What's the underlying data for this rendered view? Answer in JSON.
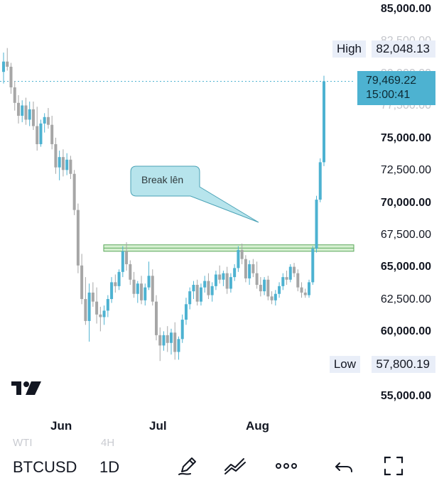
{
  "chart_data": {
    "type": "candlestick",
    "symbol": "BTCUSD",
    "timeframe": "1D",
    "y_ticks": [
      "85,000.00",
      "82,500.00",
      "80,000.00",
      "77,500.00",
      "75,000.00",
      "72,500.00",
      "70,000.00",
      "67,500.00",
      "65,000.00",
      "62,500.00",
      "60,000.00",
      "55,000.00"
    ],
    "x_ticks": [
      "Jun",
      "Jul",
      "Aug"
    ],
    "high_label": "High",
    "high_value": "82,048.13",
    "low_label": "Low",
    "low_value": "57,800.19",
    "last_price": "79,469.22",
    "countdown": "15:00:41",
    "annotation": "Break lên",
    "resistance_zone": [
      66300,
      66800
    ],
    "ylim": [
      54000,
      85500
    ],
    "candles": [
      [
        80200,
        81700,
        79300,
        81000
      ],
      [
        81000,
        82048,
        80300,
        80600
      ],
      [
        80600,
        80900,
        78500,
        79000
      ],
      [
        79000,
        79500,
        77200,
        77800
      ],
      [
        77800,
        78400,
        76200,
        76800
      ],
      [
        76800,
        78000,
        76300,
        77600
      ],
      [
        77600,
        78200,
        76100,
        76500
      ],
      [
        76500,
        77900,
        76000,
        77300
      ],
      [
        77300,
        77900,
        75700,
        76000
      ],
      [
        76000,
        77500,
        74100,
        74600
      ],
      [
        74600,
        76500,
        74400,
        76200
      ],
      [
        76200,
        77000,
        75500,
        76700
      ],
      [
        76700,
        77400,
        75800,
        76100
      ],
      [
        76100,
        76800,
        74200,
        74600
      ],
      [
        74600,
        75100,
        72300,
        72800
      ],
      [
        72800,
        74100,
        71800,
        73600
      ],
      [
        73600,
        74200,
        72100,
        72600
      ],
      [
        72600,
        73900,
        72200,
        73400
      ],
      [
        73400,
        73700,
        71900,
        72300
      ],
      [
        72300,
        72600,
        69100,
        69500
      ],
      [
        69500,
        70000,
        64600,
        65200
      ],
      [
        65200,
        66100,
        62200,
        62600
      ],
      [
        62600,
        64300,
        60600,
        60900
      ],
      [
        60900,
        63800,
        59300,
        63100
      ],
      [
        63100,
        63900,
        62000,
        62400
      ],
      [
        62400,
        63500,
        60700,
        61400
      ],
      [
        61400,
        62000,
        60100,
        61200
      ],
      [
        61200,
        62100,
        60600,
        61700
      ],
      [
        61700,
        62900,
        61200,
        62600
      ],
      [
        62600,
        64300,
        62300,
        63900
      ],
      [
        63900,
        64500,
        63100,
        63600
      ],
      [
        63600,
        64900,
        63300,
        64700
      ],
      [
        64700,
        66700,
        64300,
        66300
      ],
      [
        66300,
        67000,
        64800,
        65300
      ],
      [
        65300,
        65600,
        63700,
        64100
      ],
      [
        64100,
        64700,
        62700,
        63000
      ],
      [
        63000,
        64000,
        62300,
        63800
      ],
      [
        63800,
        64400,
        62200,
        62500
      ],
      [
        62500,
        63800,
        62100,
        63500
      ],
      [
        63500,
        65500,
        63300,
        64400
      ],
      [
        64400,
        64900,
        62100,
        62400
      ],
      [
        62400,
        62900,
        59400,
        59800
      ],
      [
        59800,
        60400,
        57800,
        59000
      ],
      [
        59000,
        60100,
        58600,
        59800
      ],
      [
        59800,
        60500,
        58500,
        59200
      ],
      [
        59200,
        60300,
        58300,
        60000
      ],
      [
        60000,
        60800,
        57900,
        58500
      ],
      [
        58500,
        59700,
        57900,
        59500
      ],
      [
        59500,
        61400,
        59200,
        61000
      ],
      [
        61000,
        62700,
        60600,
        62200
      ],
      [
        62200,
        63500,
        61800,
        63200
      ],
      [
        63200,
        64000,
        62600,
        63700
      ],
      [
        63700,
        64100,
        62100,
        62400
      ],
      [
        62400,
        63800,
        62100,
        63500
      ],
      [
        63500,
        64400,
        63100,
        64000
      ],
      [
        64000,
        64600,
        62600,
        62900
      ],
      [
        62900,
        63900,
        62400,
        63600
      ],
      [
        63600,
        64800,
        63300,
        64500
      ],
      [
        64500,
        65200,
        63800,
        64100
      ],
      [
        64100,
        64800,
        63600,
        64600
      ],
      [
        64600,
        65100,
        63000,
        63400
      ],
      [
        63400,
        64600,
        63100,
        64300
      ],
      [
        64300,
        65300,
        64000,
        65000
      ],
      [
        65000,
        66700,
        64700,
        66400
      ],
      [
        66400,
        66900,
        65300,
        65700
      ],
      [
        65700,
        66000,
        63900,
        64200
      ],
      [
        64200,
        65600,
        63700,
        65300
      ],
      [
        65300,
        65700,
        64300,
        64600
      ],
      [
        64600,
        65500,
        63400,
        63700
      ],
      [
        63700,
        64300,
        62800,
        63200
      ],
      [
        63200,
        64300,
        62900,
        64100
      ],
      [
        64100,
        64400,
        62500,
        62800
      ],
      [
        62800,
        63200,
        62200,
        62500
      ],
      [
        62500,
        63300,
        62100,
        63000
      ],
      [
        63000,
        63900,
        62700,
        63600
      ],
      [
        63600,
        64600,
        63300,
        64300
      ],
      [
        64300,
        64800,
        63700,
        64100
      ],
      [
        64100,
        65300,
        63900,
        65100
      ],
      [
        65100,
        65400,
        64300,
        64600
      ],
      [
        64600,
        64900,
        63200,
        63500
      ],
      [
        63500,
        63900,
        62700,
        63100
      ],
      [
        63100,
        63400,
        62700,
        62900
      ],
      [
        62900,
        64100,
        62700,
        63900
      ],
      [
        63900,
        66700,
        63700,
        66500
      ],
      [
        66500,
        70600,
        66200,
        70300
      ],
      [
        70300,
        73500,
        70100,
        73200
      ],
      [
        73200,
        79900,
        72900,
        79469
      ]
    ]
  },
  "toolbar": {
    "ghost_left": "WTI",
    "ghost_right": "4H",
    "icons": [
      "pencil-icon",
      "trend-line-icon",
      "more-icon",
      "undo-icon",
      "fullscreen-icon"
    ]
  },
  "colors": {
    "up": "#4db2d1",
    "down": "#a6a6a6",
    "zone_fill": "#d7f0d2",
    "zone_stroke": "#5aa85a",
    "callout_fill": "#b7e4ec",
    "callout_stroke": "#4aa2b6"
  }
}
